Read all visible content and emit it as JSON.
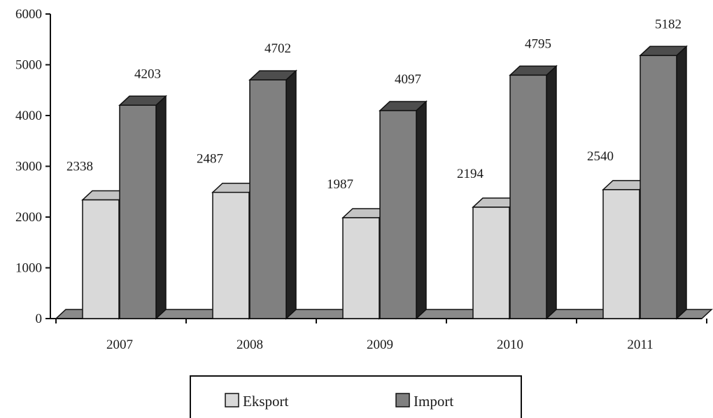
{
  "chart_data": {
    "type": "bar",
    "title": "",
    "xlabel": "",
    "ylabel": "",
    "categories": [
      "2007",
      "2008",
      "2009",
      "2010",
      "2011"
    ],
    "series": [
      {
        "name": "Eksport",
        "values": [
          2338,
          2487,
          1987,
          2194,
          2540
        ],
        "color": "#d9d9d9"
      },
      {
        "name": "Import",
        "values": [
          4203,
          4702,
          4097,
          4795,
          5182
        ],
        "color": "#808080"
      }
    ],
    "ylim": [
      0,
      6000
    ],
    "yticks": [
      "0",
      "1000",
      "2000",
      "3000",
      "4000",
      "5000",
      "6000"
    ],
    "grid": false,
    "legend_position": "bottom",
    "style": "3d-bars"
  }
}
